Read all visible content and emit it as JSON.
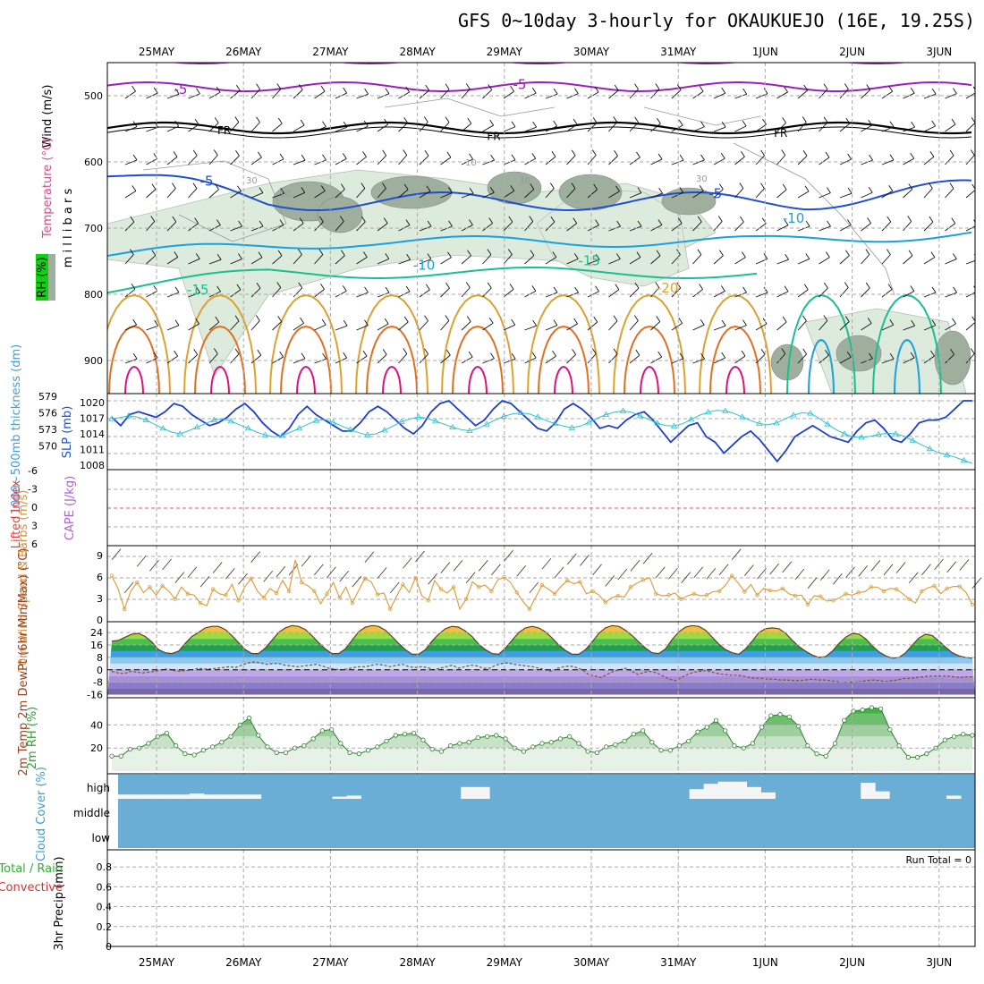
{
  "title": "GFS 0~10day 3-hourly for OKAUKUEJO (16E, 19.25S)",
  "date_labels": [
    "25MAY",
    "26MAY",
    "27MAY",
    "28MAY",
    "29MAY",
    "30MAY",
    "31MAY",
    "1JUN",
    "2JUN",
    "3JUN"
  ],
  "colors": {
    "purple": "#9a1fc0",
    "black": "#000000",
    "blue": "#1f4fd0",
    "cyan": "#1aa0e0",
    "teal": "#18c090",
    "orange": "#e0a030",
    "darkorange": "#e07020",
    "magenta": "#e01080",
    "rh_fill": "#dcebdc",
    "slp_line": "#1f3fcf",
    "thick_line": "#2fc0d0",
    "wind_speed": "#e0a040",
    "cloud_bg": "#6aaed6",
    "rh2m": "#49b24a"
  },
  "chart_data": [
    {
      "type": "contour",
      "name": "upper-air",
      "ylabel": "m i l l i b a r s",
      "yticks": [
        500,
        600,
        700,
        800,
        900
      ],
      "ylim": [
        950,
        450
      ],
      "side_labels": [
        "Wind (m/s)",
        "Temperature (°C)",
        "RH (%)"
      ],
      "contour_labels": [
        {
          "text": "-5",
          "day": 0.2,
          "p": 497
        },
        {
          "text": "-5",
          "day": 4.1,
          "p": 490
        },
        {
          "text": "FR",
          "day": 0.7,
          "p": 558
        },
        {
          "text": "FR",
          "day": 3.8,
          "p": 567
        },
        {
          "text": "FR",
          "day": 7.1,
          "p": 562
        },
        {
          "text": "-5",
          "day": 0.5,
          "p": 636
        },
        {
          "text": "-5",
          "day": 6.35,
          "p": 655
        },
        {
          "text": "-10",
          "day": 2.95,
          "p": 763
        },
        {
          "text": "-10",
          "day": 7.2,
          "p": 692
        },
        {
          "text": "-15",
          "day": 0.35,
          "p": 800
        },
        {
          "text": "-15",
          "day": 4.85,
          "p": 756
        },
        {
          "text": "-20",
          "day": 5.75,
          "p": 797
        }
      ],
      "rh_labels": [
        "30",
        "10",
        "30",
        "10",
        "30"
      ]
    },
    {
      "type": "line",
      "name": "slp-thickness",
      "left_ticks": [
        "579",
        "576",
        "573",
        "570"
      ],
      "right_ticks": [
        "1020",
        "1017",
        "1014",
        "1011",
        "1008"
      ],
      "left_label": "1000~500mb thickness (dm)",
      "right_label": "SLP (mb)",
      "slp": [
        1017,
        1015.5,
        1017.5,
        1018,
        1017.5,
        1017,
        1018,
        1019.5,
        1019,
        1017.5,
        1016.5,
        1015.5,
        1016,
        1017,
        1018.5,
        1019.5,
        1018,
        1016,
        1014.5,
        1013.5,
        1015,
        1017.5,
        1019,
        1017.5,
        1016.5,
        1015.5,
        1014.5,
        1014.5,
        1016,
        1018,
        1019,
        1018,
        1016.5,
        1015,
        1014,
        1015.5,
        1018,
        1019.5,
        1020,
        1018.5,
        1017,
        1015.5,
        1016.5,
        1018.5,
        1020,
        1019.5,
        1018,
        1016.5,
        1015,
        1014.5,
        1016,
        1018.5,
        1019.5,
        1018.5,
        1017,
        1015,
        1015.5,
        1015,
        1016.5,
        1017.5,
        1018,
        1016.5,
        1014.5,
        1012.5,
        1014,
        1015.5,
        1016,
        1013.5,
        1012.5,
        1010.5,
        1012,
        1013.5,
        1014.5,
        1013,
        1011,
        1009,
        1011,
        1013.5,
        1014.5,
        1015.5,
        1014.5,
        1013.5,
        1013,
        1012.5,
        1014.5,
        1016,
        1016.5,
        1015,
        1013,
        1012.5,
        1014,
        1016,
        1016.5,
        1016.5,
        1017,
        1018.5,
        1020,
        1020
      ],
      "thickness": [
        576,
        576.2,
        576.5,
        576.3,
        575.8,
        575.1,
        574.4,
        573.8,
        573.5,
        574,
        574.6,
        575.2,
        575.8,
        576,
        575.6,
        575,
        574.4,
        573.8,
        573.3,
        573,
        573.2,
        573.8,
        574.4,
        575.1,
        575.7,
        575.9,
        575.4,
        574.8,
        574.2,
        573.7,
        573.3,
        573.5,
        574.1,
        574.8,
        575.5,
        576,
        576.3,
        576.1,
        575.6,
        575.1,
        574.6,
        574.2,
        574,
        574.4,
        575.1,
        575.8,
        576.4,
        576.8,
        577,
        576.8,
        576.3,
        575.7,
        575.2,
        574.8,
        574.5,
        574.8,
        575.4,
        576.1,
        576.7,
        577.1,
        577.3,
        577.1,
        576.5,
        575.9,
        575.3,
        574.9,
        574.8,
        575.2,
        575.9,
        576.6,
        577.1,
        577.4,
        577.3,
        576.9,
        576.3,
        575.7,
        575.2,
        575,
        575.3,
        576,
        576.6,
        577,
        576.9,
        576.1,
        575.1,
        574.2,
        573.5,
        573,
        572.9,
        573.1,
        573.4,
        573.6,
        573.5,
        573.1,
        572.4,
        571.7,
        571,
        570.4,
        570,
        569.6,
        569.1,
        568.6
      ]
    },
    {
      "type": "line",
      "name": "lifted-index-cape",
      "ticks": [
        "-6",
        "-3",
        "0",
        "3",
        "6"
      ],
      "left_label": "Lifted Index",
      "right_label": "CAPE (J/kg)",
      "lifted_index_line": 0
    },
    {
      "type": "line",
      "name": "10m-wind",
      "ylabel": "10m Wind Speed & Barbs (m/s)",
      "yticks": [
        "9",
        "6",
        "3",
        "0"
      ],
      "ylim": [
        0,
        10.5
      ],
      "values": [
        6.5,
        4.5,
        1.5,
        4.2,
        5.5,
        4,
        4.8,
        3.6,
        5,
        4.2,
        3,
        4.8,
        3.8,
        3.6,
        2.4,
        2,
        4.5,
        3.8,
        3.6,
        5.2,
        2.8,
        4.8,
        6.1,
        4.2,
        3.2,
        4.6,
        3.9,
        5.8,
        4.2,
        8.9,
        5.5,
        5,
        4.2,
        2.3,
        3.8,
        5.5,
        3.2,
        4.8,
        2.4,
        4.3,
        6.1,
        5.6,
        3.7,
        3.9,
        1.5,
        3.4,
        5.2,
        4,
        6.2,
        3.5,
        2.8,
        5.8,
        4.5,
        3.9,
        4.8,
        1.5,
        3,
        5.6,
        4.8,
        5.1,
        4.2,
        5.9,
        6.3,
        5.5,
        4,
        2.6,
        1.5,
        3.3,
        5.1,
        4.5,
        3.8,
        4.9,
        5.8,
        5.3,
        5.6,
        3.8,
        4.2,
        3.6,
        2.5,
        3.2,
        3.5,
        3.3,
        4.8,
        5.4,
        5.9,
        6.2,
        3.8,
        3.5,
        3.6,
        3.9,
        3,
        3.5,
        3.8,
        3.5,
        3.6,
        4.1,
        4.2,
        5.1,
        6.5,
        5.4,
        4.1,
        5.2,
        3.6,
        4.6,
        4.3,
        4.2,
        4.6,
        3.8,
        3.5,
        3.6,
        2.2,
        3.5,
        3.4,
        2.7,
        2.8,
        3.2,
        3.8,
        3.6,
        4,
        4.1,
        4.8,
        4.8,
        4.2,
        4.6,
        4.5,
        3.8,
        3,
        2.4,
        4.2,
        4.7,
        5,
        3.8,
        4.6,
        4.9,
        4.9,
        4,
        2.2
      ]
    },
    {
      "type": "area",
      "name": "2m-temp",
      "ylabel": "2m Temp 2m DewPt (6hr Min/Max) (°C)",
      "yticks": [
        "24",
        "16",
        "8",
        "0",
        "-8",
        "-16"
      ],
      "ylim": [
        -16,
        31
      ],
      "temp": [
        18.5,
        19,
        21,
        23,
        23.5,
        21.5,
        18,
        13,
        11,
        10.5,
        12,
        17,
        21.5,
        24,
        27,
        28,
        28,
        26,
        22,
        17.5,
        13,
        10.5,
        10.5,
        14,
        19,
        24,
        27,
        28.5,
        28,
        26,
        22,
        17.5,
        13.5,
        10.5,
        10.5,
        13.5,
        19,
        24.5,
        27.5,
        28.5,
        28,
        25.5,
        21.5,
        17,
        13,
        10,
        10,
        13,
        18.5,
        23,
        26.5,
        28,
        27.5,
        25,
        21.5,
        16.5,
        13,
        10.5,
        10,
        14,
        19,
        24,
        27,
        28,
        27,
        24.5,
        20.5,
        16,
        12.5,
        10,
        10,
        13,
        18,
        23.5,
        27,
        28.5,
        28,
        25.5,
        22,
        18,
        14,
        11,
        10.5,
        13.5,
        19.5,
        24.5,
        27.5,
        28.5,
        28,
        25.5,
        21,
        16.5,
        13,
        11,
        10,
        13.5,
        18.5,
        24,
        26.5,
        27,
        26.5,
        23.5,
        19,
        15,
        12,
        9.5,
        8,
        8.5,
        12,
        17,
        21,
        23.5,
        23,
        20,
        15.5,
        11.5,
        9,
        7.5,
        8,
        11,
        16,
        20.5,
        23,
        22,
        18.5,
        14.5,
        11,
        9,
        8,
        7.5
      ],
      "dewpt": [
        -1,
        -2,
        -2.5,
        -1,
        -1.5,
        -2,
        -1.5,
        -1,
        0,
        0.5,
        -0.5,
        -1,
        -0.5,
        0,
        1,
        0.5,
        0.5,
        1,
        1.5,
        2,
        1.5,
        3,
        4.5,
        5,
        4.5,
        3.5,
        4,
        4,
        3,
        2.5,
        2,
        2.5,
        3,
        3.5,
        2.5,
        1,
        0.5,
        0,
        0.5,
        1.5,
        2,
        2,
        3,
        3.5,
        3,
        2,
        3,
        3.5,
        2,
        1.5,
        2,
        1.5,
        0,
        1,
        2,
        3,
        1,
        2,
        3,
        2.5,
        1,
        1,
        3,
        4,
        4.5,
        3.5,
        3,
        2.5,
        2,
        1,
        0,
        -1,
        1,
        2,
        2.5,
        1.5,
        0,
        -3,
        -4,
        -5,
        -3,
        -1,
        0,
        1,
        -1,
        -3,
        -1.5,
        -1,
        -2,
        -4,
        -6,
        -7,
        -5,
        -3,
        -1.5,
        -1,
        -0.5,
        -1.5,
        -2.5,
        -3,
        -3.5,
        -3.5,
        -4,
        -5,
        -5.5,
        -5.5,
        -6,
        -6,
        -6.5,
        -6.5,
        -7,
        -7,
        -6.5,
        -6,
        -6.5,
        -6.5,
        -7,
        -7.5,
        -8,
        -8,
        -8,
        -7.5,
        -7,
        -6.5,
        -7,
        -7.5,
        -7,
        -6.5,
        -5.5,
        -5.5,
        -5,
        -4.5,
        -4,
        -4,
        -4,
        -4,
        -4.5,
        -5,
        -4.5,
        -4.5
      ]
    },
    {
      "type": "area",
      "name": "2m-rh",
      "ylabel": "2m RH (%)",
      "yticks": [
        "40",
        "20"
      ],
      "ylim": [
        0,
        62
      ],
      "values": [
        13,
        13,
        19,
        20,
        24,
        30,
        33,
        22,
        15,
        14,
        18,
        21,
        25,
        30,
        40,
        46,
        31,
        21,
        16,
        16,
        20,
        22,
        28,
        35,
        36,
        24,
        16,
        15,
        18,
        21,
        26,
        31,
        32,
        33,
        27,
        19,
        17,
        22,
        24,
        25,
        29,
        30,
        31,
        28,
        20,
        17,
        21,
        24,
        25,
        28,
        30,
        24,
        17,
        16,
        21,
        23,
        26,
        32,
        35,
        25,
        18,
        18,
        22,
        26,
        34,
        38,
        44,
        35,
        22,
        20,
        24,
        38,
        48,
        49,
        47,
        39,
        22,
        15,
        13,
        24,
        44,
        52,
        53,
        55,
        54,
        36,
        22,
        12,
        12,
        15,
        20,
        27,
        30,
        32,
        31
      ]
    },
    {
      "type": "heatmap",
      "name": "cloud-cover",
      "ylabel": "Cloud Cover (%)",
      "levels": [
        "high",
        "middle",
        "low"
      ],
      "high_cover": [
        0.2,
        0.2,
        0.2,
        0.2,
        0.2,
        0.25,
        0.2,
        0.2,
        0.2,
        0.2,
        0,
        0,
        0,
        0,
        0,
        0.1,
        0.15,
        0,
        0,
        0,
        0,
        0,
        0,
        0,
        0.55,
        0.55,
        0,
        0,
        0,
        0,
        0,
        0,
        0,
        0,
        0,
        0,
        0,
        0,
        0,
        0,
        0.45,
        0.7,
        0.8,
        0.8,
        0.55,
        0.3,
        0,
        0,
        0,
        0,
        0,
        0,
        0.75,
        0.35,
        0,
        0,
        0,
        0,
        0.15,
        0
      ]
    },
    {
      "type": "bar",
      "name": "precip",
      "ylabel": "3hr Precip (mm)",
      "legend": [
        "Total / Rain",
        "Convective"
      ],
      "yticks": [
        "0.8",
        "0.6",
        "0.4",
        "0.2",
        "0"
      ],
      "ylim": [
        0,
        0.9
      ],
      "run_total": "Run Total = 0",
      "values": []
    }
  ]
}
